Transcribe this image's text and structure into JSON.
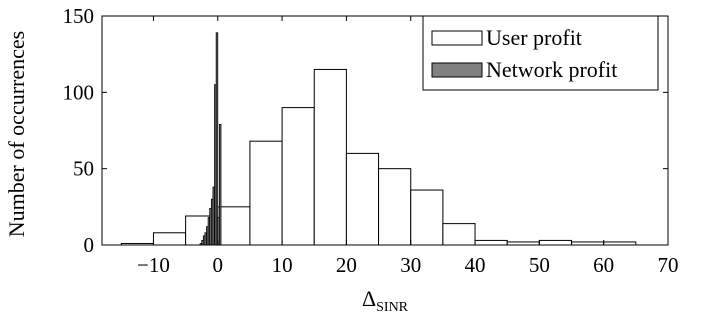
{
  "chart_data": {
    "type": "bar",
    "xlabel_main": "Δ",
    "xlabel_sub": "SINR",
    "ylabel": "Number of occurrences",
    "xlim": [
      -18,
      70
    ],
    "ylim": [
      0,
      150
    ],
    "x_ticks": [
      -10,
      0,
      10,
      20,
      30,
      40,
      50,
      60,
      70
    ],
    "x_tick_labels": [
      "−10",
      "0",
      "10",
      "20",
      "30",
      "40",
      "50",
      "60",
      "70"
    ],
    "y_ticks": [
      0,
      50,
      100,
      150
    ],
    "y_tick_labels": [
      "0",
      "50",
      "100",
      "150"
    ],
    "grid": false,
    "legend_position": "top-right",
    "series": [
      {
        "name": "User profit",
        "color": "#ffffff",
        "bins": [
          {
            "start": -15,
            "end": -10,
            "count": 1
          },
          {
            "start": -10,
            "end": -5,
            "count": 8
          },
          {
            "start": -5,
            "end": 0,
            "count": 19
          },
          {
            "start": 0,
            "end": 5,
            "count": 25
          },
          {
            "start": 5,
            "end": 10,
            "count": 68
          },
          {
            "start": 10,
            "end": 15,
            "count": 90
          },
          {
            "start": 15,
            "end": 20,
            "count": 115
          },
          {
            "start": 20,
            "end": 25,
            "count": 60
          },
          {
            "start": 25,
            "end": 30,
            "count": 50
          },
          {
            "start": 30,
            "end": 35,
            "count": 36
          },
          {
            "start": 35,
            "end": 40,
            "count": 14
          },
          {
            "start": 40,
            "end": 45,
            "count": 3
          },
          {
            "start": 45,
            "end": 50,
            "count": 2
          },
          {
            "start": 50,
            "end": 55,
            "count": 3
          },
          {
            "start": 55,
            "end": 60,
            "count": 2
          },
          {
            "start": 60,
            "end": 65,
            "count": 2
          }
        ]
      },
      {
        "name": "Network profit",
        "color": "#808080",
        "bins": [
          {
            "start": -2.75,
            "end": -2.5,
            "count": 1
          },
          {
            "start": -2.5,
            "end": -2.25,
            "count": 3
          },
          {
            "start": -2.25,
            "end": -2.0,
            "count": 6
          },
          {
            "start": -2.0,
            "end": -1.75,
            "count": 8
          },
          {
            "start": -1.75,
            "end": -1.5,
            "count": 12
          },
          {
            "start": -1.5,
            "end": -1.25,
            "count": 18
          },
          {
            "start": -1.25,
            "end": -1.0,
            "count": 24
          },
          {
            "start": -1.0,
            "end": -0.75,
            "count": 30
          },
          {
            "start": -0.75,
            "end": -0.5,
            "count": 38
          },
          {
            "start": -0.5,
            "end": -0.25,
            "count": 105
          },
          {
            "start": -0.25,
            "end": 0.0,
            "count": 139
          },
          {
            "start": 0.0,
            "end": 0.25,
            "count": 18
          },
          {
            "start": 0.25,
            "end": 0.5,
            "count": 79
          }
        ]
      }
    ]
  }
}
